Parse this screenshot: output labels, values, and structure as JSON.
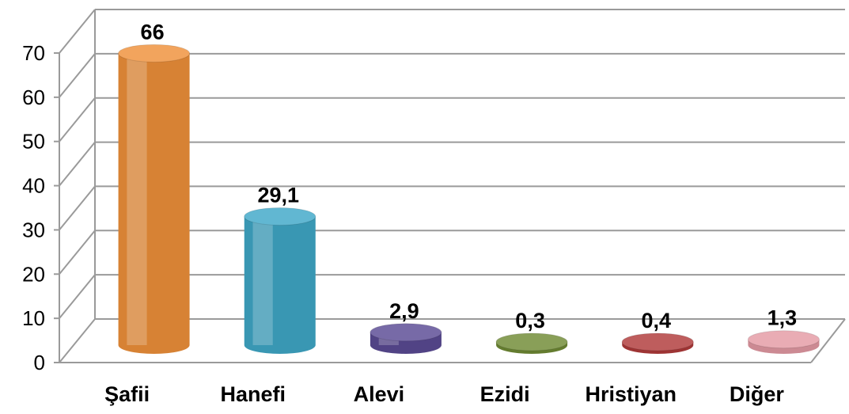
{
  "chart_data": {
    "type": "bar",
    "style": "3d-cylinder",
    "title": "",
    "xlabel": "",
    "ylabel": "",
    "categories": [
      "Şafii",
      "Hanefi",
      "Alevi",
      "Ezidi",
      "Hristiyan",
      "Diğer"
    ],
    "values": [
      66,
      29.1,
      2.9,
      0.3,
      0.4,
      1.3
    ],
    "data_labels": [
      "66",
      "29,1",
      "2,9",
      "0,3",
      "0,4",
      "1,3"
    ],
    "yticks": [
      "0",
      "10",
      "20",
      "30",
      "40",
      "50",
      "60",
      "70"
    ],
    "ytick_values": [
      0,
      10,
      20,
      30,
      40,
      50,
      60,
      70
    ],
    "ylim": [
      0,
      70
    ],
    "grid": true,
    "legend": "none",
    "colors": [
      "#f0913a",
      "#3fa8c8",
      "#5a4a94",
      "#6f8a34",
      "#b03a3a",
      "#e49aa4"
    ]
  }
}
